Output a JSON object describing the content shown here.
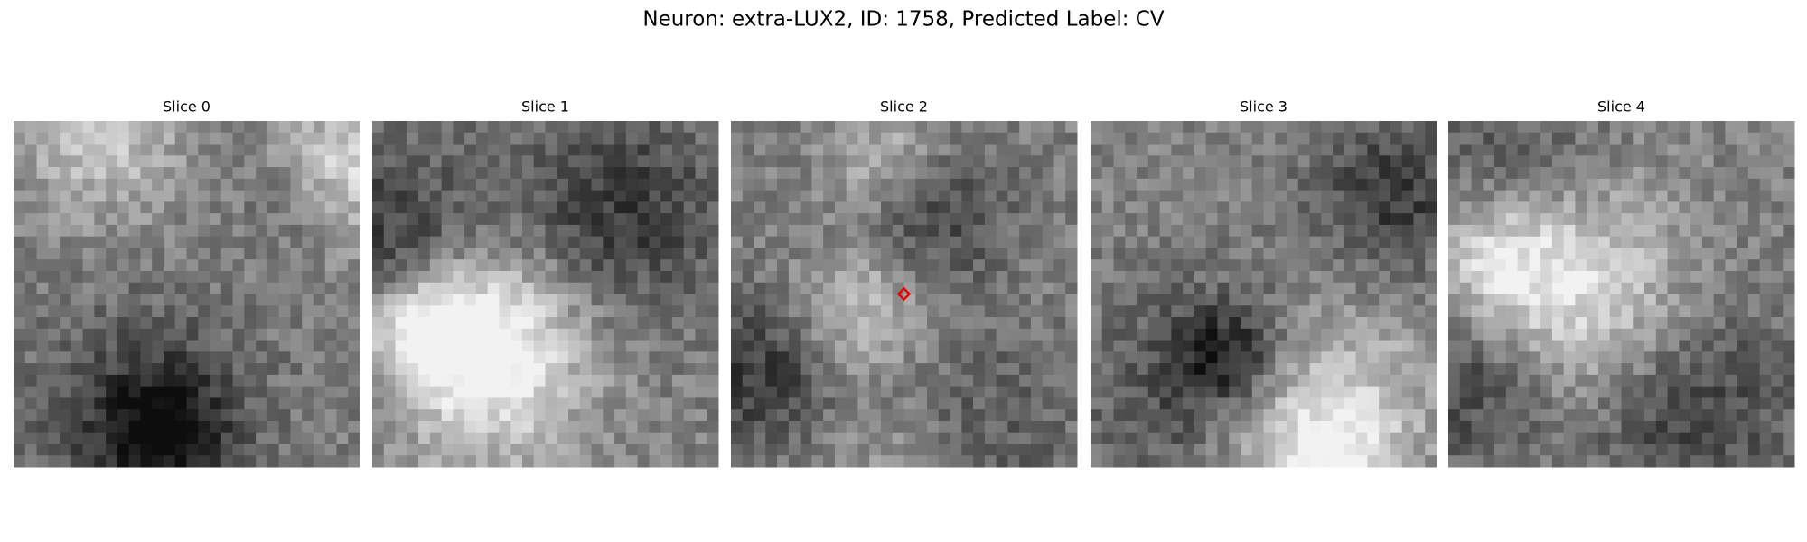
{
  "header": {
    "title": "Neuron: extra-LUX2, ID: 1758, Predicted Label: CV"
  },
  "panels": [
    {
      "title": "Slice 0"
    },
    {
      "title": "Slice 1"
    },
    {
      "title": "Slice 2"
    },
    {
      "title": "Slice 3"
    },
    {
      "title": "Slice 4"
    }
  ]
}
